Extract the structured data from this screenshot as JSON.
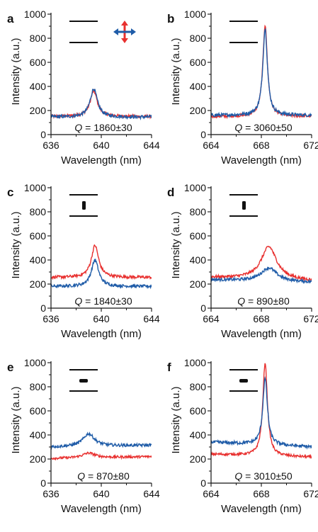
{
  "colors": {
    "red": "#e8302f",
    "blue": "#1f5ca8",
    "axis": "#111111"
  },
  "legend_icon": "crossed-polarization-arrows-icon",
  "chart_data": [
    {
      "type": "line",
      "panel": "a",
      "xlabel": "Wavelength (nm)",
      "ylabel": "Intensity (a.u.)",
      "xlim": [
        636,
        644
      ],
      "ylim": [
        0,
        1000
      ],
      "xticks": [
        636,
        640,
        644
      ],
      "yticks": [
        0,
        200,
        400,
        600,
        800,
        1000
      ],
      "q_text": "= 1860±30",
      "inset": "two-horizontal-lines",
      "series": [
        {
          "color": "red",
          "baseline_left": 150,
          "baseline_right": 150,
          "peak_x": 639.4,
          "peak_y": 360,
          "width": 0.35,
          "noise": 12
        },
        {
          "color": "blue",
          "baseline_left": 145,
          "baseline_right": 145,
          "peak_x": 639.4,
          "peak_y": 380,
          "width": 0.35,
          "noise": 14
        }
      ]
    },
    {
      "type": "line",
      "panel": "b",
      "xlabel": "Wavelength (nm)",
      "ylabel": "Intensity (a.u.)",
      "xlim": [
        664,
        672
      ],
      "ylim": [
        0,
        1000
      ],
      "xticks": [
        664,
        668,
        672
      ],
      "yticks": [
        0,
        200,
        400,
        600,
        800,
        1000
      ],
      "q_text": "= 3060±50",
      "inset": "two-horizontal-lines",
      "series": [
        {
          "color": "red",
          "baseline_left": 150,
          "baseline_right": 150,
          "peak_x": 668.3,
          "peak_y": 910,
          "width": 0.22,
          "noise": 12
        },
        {
          "color": "blue",
          "baseline_left": 160,
          "baseline_right": 160,
          "peak_x": 668.3,
          "peak_y": 880,
          "width": 0.22,
          "noise": 14
        }
      ]
    },
    {
      "type": "line",
      "panel": "c",
      "xlabel": "Wavelength (nm)",
      "ylabel": "Intensity (a.u.)",
      "xlim": [
        636,
        644
      ],
      "ylim": [
        0,
        1000
      ],
      "xticks": [
        636,
        640,
        644
      ],
      "yticks": [
        0,
        200,
        400,
        600,
        800,
        1000
      ],
      "q_text": "= 1840±30",
      "inset": "lines-with-vertical-bar",
      "series": [
        {
          "color": "red",
          "baseline_left": 255,
          "baseline_right": 255,
          "peak_x": 639.5,
          "peak_y": 520,
          "width": 0.35,
          "noise": 12
        },
        {
          "color": "blue",
          "baseline_left": 180,
          "baseline_right": 180,
          "peak_x": 639.5,
          "peak_y": 400,
          "width": 0.35,
          "noise": 12
        }
      ]
    },
    {
      "type": "line",
      "panel": "d",
      "xlabel": "Wavelength (nm)",
      "ylabel": "Intensity (a.u.)",
      "xlim": [
        664,
        672
      ],
      "ylim": [
        0,
        1000
      ],
      "xticks": [
        664,
        668,
        672
      ],
      "yticks": [
        0,
        200,
        400,
        600,
        800,
        1000
      ],
      "q_text": "= 890±80",
      "inset": "lines-with-vertical-bar",
      "series": [
        {
          "color": "red",
          "baseline_left": 255,
          "baseline_right": 225,
          "peak_x": 668.6,
          "peak_y": 510,
          "width": 0.75,
          "noise": 12
        },
        {
          "color": "blue",
          "baseline_left": 235,
          "baseline_right": 215,
          "peak_x": 668.6,
          "peak_y": 335,
          "width": 0.75,
          "noise": 12
        }
      ]
    },
    {
      "type": "line",
      "panel": "e",
      "xlabel": "Wavelength (nm)",
      "ylabel": "Intensity (a.u.)",
      "xlim": [
        636,
        644
      ],
      "ylim": [
        0,
        1000
      ],
      "xticks": [
        636,
        640,
        644
      ],
      "yticks": [
        0,
        200,
        400,
        600,
        800,
        1000
      ],
      "q_text": "= 870±80",
      "inset": "lines-with-horizontal-bar",
      "series": [
        {
          "color": "red",
          "baseline_left": 205,
          "baseline_right": 220,
          "peak_x": 639.0,
          "peak_y": 250,
          "width": 0.6,
          "noise": 10
        },
        {
          "color": "blue",
          "baseline_left": 300,
          "baseline_right": 315,
          "peak_x": 639.0,
          "peak_y": 410,
          "width": 0.55,
          "noise": 12
        }
      ]
    },
    {
      "type": "line",
      "panel": "f",
      "xlabel": "Wavelength (nm)",
      "ylabel": "Intensity (a.u.)",
      "xlim": [
        664,
        672
      ],
      "ylim": [
        0,
        1000
      ],
      "xticks": [
        664,
        668,
        672
      ],
      "yticks": [
        0,
        200,
        400,
        600,
        800,
        1000
      ],
      "q_text": "= 3010±50",
      "inset": "lines-with-horizontal-bar",
      "series": [
        {
          "color": "red",
          "baseline_left": 240,
          "baseline_right": 215,
          "peak_x": 668.3,
          "peak_y": 1000,
          "width": 0.22,
          "noise": 10
        },
        {
          "color": "blue",
          "baseline_left": 340,
          "baseline_right": 300,
          "peak_x": 668.3,
          "peak_y": 870,
          "width": 0.22,
          "noise": 14
        }
      ]
    }
  ]
}
